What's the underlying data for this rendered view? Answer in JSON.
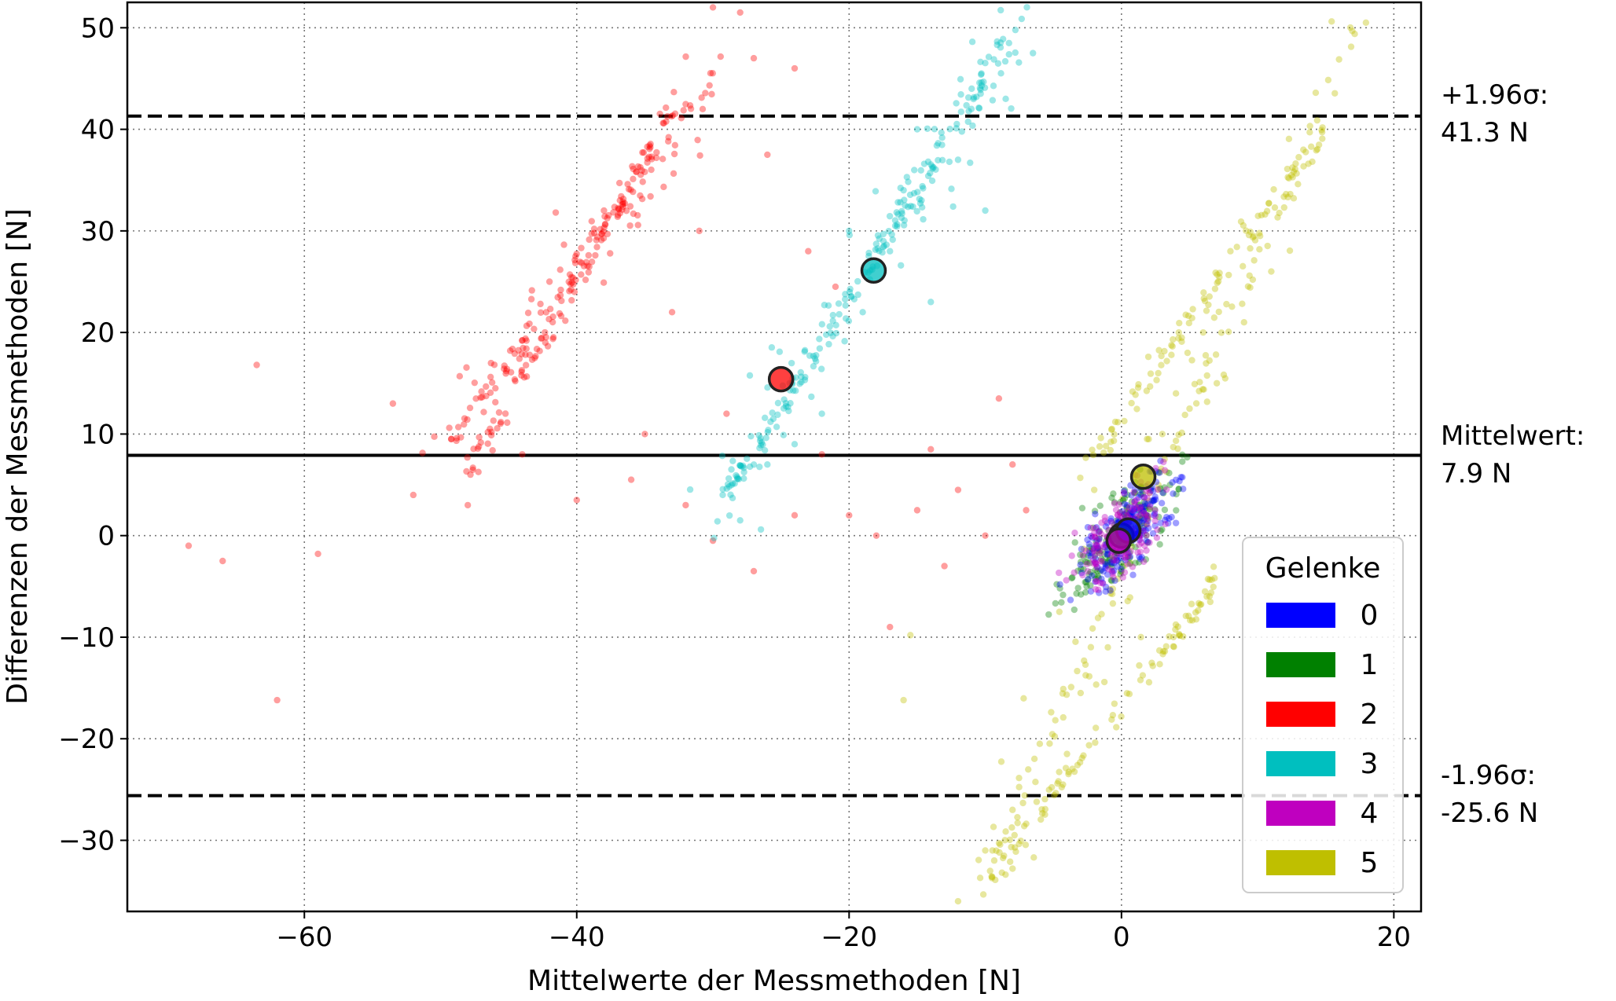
{
  "chart_data": {
    "type": "scatter",
    "title": "",
    "xlabel": "Mittelwerte der Messmethoden [N]",
    "ylabel": "Differenzen der Messmethoden [N]",
    "xlim": [
      -73,
      22
    ],
    "ylim": [
      -37,
      52.5
    ],
    "xticks": [
      -60,
      -40,
      -20,
      0,
      20
    ],
    "yticks": [
      -30,
      -20,
      -10,
      0,
      10,
      20,
      30,
      40,
      50
    ],
    "x_tick_labels": [
      "−60",
      "−40",
      "−20",
      "0",
      "20"
    ],
    "y_tick_labels": [
      "−30",
      "−20",
      "−10",
      "0",
      "10",
      "20",
      "30",
      "40",
      "50"
    ],
    "grid": true,
    "grid_style": "dotted",
    "legend": {
      "title": "Gelenke",
      "position": "lower-right",
      "entries": [
        {
          "label": "0",
          "color": "#0000ff"
        },
        {
          "label": "1",
          "color": "#008000"
        },
        {
          "label": "2",
          "color": "#ff0000"
        },
        {
          "label": "3",
          "color": "#00bfbf"
        },
        {
          "label": "4",
          "color": "#bf00bf"
        },
        {
          "label": "5",
          "color": "#bfbf00"
        }
      ]
    },
    "reference_lines": [
      {
        "name": "upper",
        "y": 41.3,
        "style": "dashed",
        "label_line1": "+1.96σ:",
        "label_line2": "41.3 N"
      },
      {
        "name": "mean",
        "y": 7.9,
        "style": "solid",
        "label_line1": "Mittelwert:",
        "label_line2": "7.9 N"
      },
      {
        "name": "lower",
        "y": -25.6,
        "style": "dashed",
        "label_line1": "-1.96σ:",
        "label_line2": "-25.6 N"
      }
    ],
    "group_means": [
      {
        "group": "0",
        "x": 0.5,
        "y": 0.5
      },
      {
        "group": "1",
        "x": 0.0,
        "y": 0.0
      },
      {
        "group": "2",
        "x": -25.0,
        "y": 15.4
      },
      {
        "group": "3",
        "x": -18.2,
        "y": 26.1
      },
      {
        "group": "4",
        "x": -0.2,
        "y": -0.5
      },
      {
        "group": "5",
        "x": 1.6,
        "y": 5.8
      }
    ],
    "series_representative": [
      {
        "group": "2",
        "color": "#ff0000",
        "bands": [
          {
            "x_from": -50,
            "y_from": 8,
            "x_to": -30,
            "y_to": 45
          },
          {
            "x_from": -48,
            "y_from": 6,
            "x_to": -33,
            "y_to": 42
          }
        ],
        "scattered_points": [
          [
            -68.5,
            -1.0
          ],
          [
            -66,
            -2.5
          ],
          [
            -62,
            -16.2
          ],
          [
            -63.5,
            16.8
          ],
          [
            -59,
            -1.8
          ],
          [
            -52,
            4.0
          ],
          [
            -53.5,
            13.0
          ],
          [
            -48,
            3.0
          ],
          [
            -44,
            8.0
          ],
          [
            -40,
            3.5
          ],
          [
            -35,
            10.0
          ],
          [
            -32,
            3.0
          ],
          [
            -30,
            -0.5
          ],
          [
            -27,
            -3.5
          ],
          [
            -24,
            2.0
          ],
          [
            -22,
            8.0
          ],
          [
            -20,
            2.0
          ],
          [
            -18,
            0.0
          ],
          [
            -17,
            -9.0
          ],
          [
            -15,
            2.5
          ],
          [
            -14,
            8.5
          ],
          [
            -12,
            4.5
          ],
          [
            -10,
            0.0
          ],
          [
            -9,
            13.5
          ],
          [
            -8,
            7.0
          ],
          [
            -7,
            2.5
          ],
          [
            -13,
            -3.0
          ],
          [
            -21,
            24.5
          ],
          [
            -23,
            28.0
          ],
          [
            -27,
            47.0
          ],
          [
            -30,
            52.0
          ],
          [
            -28,
            51.5
          ],
          [
            -26,
            37.5
          ],
          [
            -24,
            46.0
          ],
          [
            -38,
            32.0
          ],
          [
            -42,
            25.0
          ],
          [
            -36,
            5.5
          ],
          [
            -29,
            12.0
          ],
          [
            -33,
            22.0
          ],
          [
            -31,
            30.0
          ]
        ]
      },
      {
        "group": "3",
        "color": "#00bfbf",
        "bands": [
          {
            "x_from": -30,
            "y_from": 2,
            "x_to": -7,
            "y_to": 52
          },
          {
            "x_from": -29,
            "y_from": 4,
            "x_to": -9,
            "y_to": 46
          }
        ],
        "scattered_points": [
          [
            -6.5,
            47.5
          ],
          [
            -8.5,
            43.0
          ],
          [
            -14,
            23.0
          ],
          [
            -16,
            34.0
          ],
          [
            -12,
            37.0
          ],
          [
            -10,
            32.0
          ],
          [
            -22,
            12.0
          ],
          [
            -24,
            9.0
          ],
          [
            -26,
            7.0
          ],
          [
            -28,
            1.5
          ],
          [
            -17,
            28.0
          ],
          [
            -19,
            22.0
          ],
          [
            -20,
            30.0
          ],
          [
            -15,
            40.0
          ],
          [
            -11,
            44.0
          ]
        ]
      },
      {
        "group": "5",
        "color": "#bfbf00",
        "bands": [
          {
            "x_from": -11,
            "y_from": -37,
            "x_to": 17.5,
            "y_to": 51
          },
          {
            "x_from": -10,
            "y_from": -34,
            "x_to": 7,
            "y_to": -4.5
          },
          {
            "x_from": -3,
            "y_from": 6,
            "x_to": 15,
            "y_to": 40
          }
        ],
        "scattered_points": [
          [
            -16,
            -16.2
          ],
          [
            -15.5,
            -9.8
          ],
          [
            -12,
            -36.0
          ],
          [
            -10,
            -31.0
          ],
          [
            -8,
            -27.0
          ],
          [
            -6,
            -20.5
          ],
          [
            -4,
            -21.5
          ],
          [
            -3,
            -15.5
          ],
          [
            -1,
            -11.0
          ],
          [
            1,
            6.0
          ],
          [
            3,
            10.0
          ],
          [
            5,
            12.5
          ],
          [
            7,
            15.0
          ],
          [
            9,
            21.0
          ],
          [
            11,
            26.0
          ],
          [
            2,
            9.5
          ],
          [
            -2,
            4.5
          ],
          [
            4,
            14.0
          ],
          [
            6,
            20.0
          ],
          [
            8,
            28.0
          ]
        ]
      },
      {
        "group": "0",
        "color": "#0000ff",
        "center": [
          0.5,
          0.5
        ],
        "spread": [
          4.0,
          4.0
        ],
        "count": 200
      },
      {
        "group": "1",
        "color": "#008000",
        "center": [
          0.0,
          0.0
        ],
        "spread": [
          4.2,
          4.2
        ],
        "count": 200
      },
      {
        "group": "4",
        "color": "#bf00bf",
        "center": [
          0.0,
          0.0
        ],
        "spread": [
          3.5,
          3.5
        ],
        "count": 170
      }
    ]
  }
}
